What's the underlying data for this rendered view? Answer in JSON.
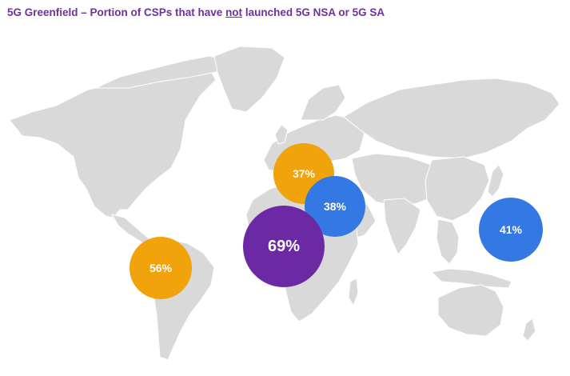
{
  "title": {
    "before": "5G Greenfield – Portion of CSPs that have ",
    "emphasis": "not",
    "after": " launched 5G NSA or 5G SA"
  },
  "colors": {
    "title": "#7030A0",
    "land": "#d9d9d9",
    "orange": "#F0A30A",
    "blue": "#3478E3",
    "purple": "#6B2AA4"
  },
  "regions": {
    "europe": {
      "label": "37%",
      "value": 37,
      "color": "#F0A30A"
    },
    "middle_east": {
      "label": "38%",
      "value": 38,
      "color": "#3478E3"
    },
    "africa": {
      "label": "69%",
      "value": 69,
      "color": "#6B2AA4"
    },
    "latin_america": {
      "label": "56%",
      "value": 56,
      "color": "#F0A30A"
    },
    "asia_pacific": {
      "label": "41%",
      "value": 41,
      "color": "#3478E3"
    }
  }
}
